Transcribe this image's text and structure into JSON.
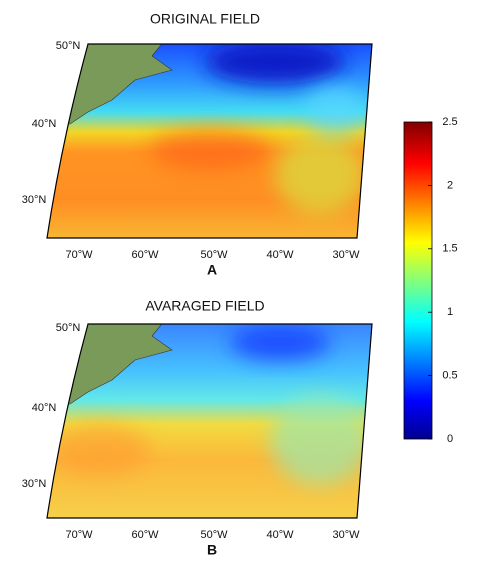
{
  "panels": [
    {
      "title": "ORIGINAL FIELD",
      "label": "A",
      "lat_labels": [
        "50°N",
        "40°N",
        "30°N"
      ],
      "lon_labels": [
        "70°W",
        "60°W",
        "50°W",
        "40°W",
        "30°W"
      ]
    },
    {
      "title": "AVARAGED FIELD",
      "label": "B",
      "lat_labels": [
        "50°N",
        "40°N",
        "30°N"
      ],
      "lon_labels": [
        "70°W",
        "60°W",
        "50°W",
        "40°W",
        "30°W"
      ]
    }
  ],
  "colorbar": {
    "ylim": [
      0,
      2.5
    ],
    "yticks": [
      0,
      0.5,
      1,
      1.5,
      2,
      2.5
    ]
  }
}
